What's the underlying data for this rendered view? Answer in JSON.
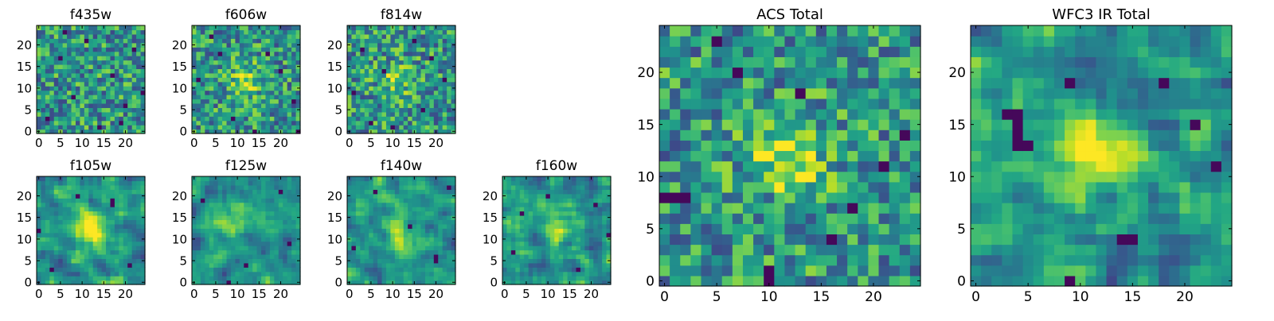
{
  "chart_data": [
    {
      "type": "heatmap",
      "title": "f435w",
      "size": 25,
      "xticks": [
        0,
        5,
        10,
        15,
        20
      ],
      "yticks": [
        0,
        5,
        10,
        15,
        20
      ],
      "colormap": "viridis",
      "gaussian_peak": {
        "x": 12,
        "y": 12,
        "amplitude": 0.0,
        "sigma": 4
      },
      "noise_seed": 435,
      "smoothing": 0,
      "dark_pixels": [
        [
          2,
          3
        ],
        [
          5,
          17
        ],
        [
          8,
          8
        ],
        [
          11,
          21
        ],
        [
          14,
          1
        ],
        [
          17,
          13
        ],
        [
          20,
          6
        ],
        [
          22,
          19
        ],
        [
          24,
          9
        ],
        [
          6,
          23
        ],
        [
          19,
          2
        ]
      ]
    },
    {
      "type": "heatmap",
      "title": "f606w",
      "size": 25,
      "xticks": [
        0,
        5,
        10,
        15,
        20
      ],
      "yticks": [
        0,
        5,
        10,
        15,
        20
      ],
      "colormap": "viridis",
      "gaussian_peak": {
        "x": 12,
        "y": 12,
        "amplitude": 0.35,
        "sigma": 2.5
      },
      "noise_seed": 606,
      "smoothing": 0,
      "dark_pixels": [
        [
          4,
          22
        ],
        [
          17,
          18
        ],
        [
          23,
          7
        ],
        [
          1,
          12
        ],
        [
          9,
          3
        ],
        [
          20,
          14
        ],
        [
          14,
          0
        ],
        [
          6,
          18
        ],
        [
          24,
          0
        ]
      ]
    },
    {
      "type": "heatmap",
      "title": "f814w",
      "size": 25,
      "xticks": [
        0,
        5,
        10,
        15,
        20
      ],
      "yticks": [
        0,
        5,
        10,
        15,
        20
      ],
      "colormap": "viridis",
      "gaussian_peak": {
        "x": 11,
        "y": 12,
        "amplitude": 0.3,
        "sigma": 2.5
      },
      "noise_seed": 814,
      "smoothing": 0,
      "dark_pixels": [
        [
          1,
          9
        ],
        [
          5,
          2
        ],
        [
          17,
          5
        ],
        [
          19,
          17
        ],
        [
          22,
          12
        ],
        [
          3,
          19
        ],
        [
          10,
          1
        ],
        [
          15,
          21
        ],
        [
          8,
          14
        ]
      ]
    },
    {
      "type": "heatmap",
      "title": "f105w",
      "size": 25,
      "xticks": [
        0,
        5,
        10,
        15,
        20
      ],
      "yticks": [
        0,
        5,
        10,
        15,
        20
      ],
      "colormap": "viridis",
      "gaussian_peak": {
        "x": 12,
        "y": 12,
        "amplitude": 0.45,
        "sigma": 3
      },
      "noise_seed": 105,
      "smoothing": 1,
      "dark_pixels": [
        [
          17,
          18
        ],
        [
          17,
          19
        ],
        [
          3,
          3
        ],
        [
          9,
          20
        ],
        [
          21,
          4
        ],
        [
          0,
          12
        ]
      ]
    },
    {
      "type": "heatmap",
      "title": "f125w",
      "size": 25,
      "xticks": [
        0,
        5,
        10,
        15,
        20
      ],
      "yticks": [
        0,
        5,
        10,
        15,
        20
      ],
      "colormap": "viridis",
      "gaussian_peak": {
        "x": 8,
        "y": 14,
        "amplitude": 0.35,
        "sigma": 3
      },
      "noise_seed": 125,
      "smoothing": 1,
      "dark_pixels": [
        [
          12,
          4
        ],
        [
          8,
          0
        ],
        [
          20,
          21
        ],
        [
          2,
          19
        ],
        [
          22,
          9
        ]
      ]
    },
    {
      "type": "heatmap",
      "title": "f140w",
      "size": 25,
      "xticks": [
        0,
        5,
        10,
        15,
        20
      ],
      "yticks": [
        0,
        5,
        10,
        15,
        20
      ],
      "colormap": "viridis",
      "gaussian_peak": {
        "x": 12,
        "y": 12,
        "amplitude": 0.35,
        "sigma": 3
      },
      "noise_seed": 140,
      "smoothing": 1,
      "dark_pixels": [
        [
          20,
          5
        ],
        [
          20,
          6
        ],
        [
          6,
          21
        ],
        [
          14,
          13
        ],
        [
          1,
          8
        ],
        [
          23,
          22
        ]
      ]
    },
    {
      "type": "heatmap",
      "title": "f160w",
      "size": 25,
      "xticks": [
        0,
        5,
        10,
        15,
        20
      ],
      "yticks": [
        0,
        5,
        10,
        15,
        20
      ],
      "colormap": "viridis",
      "gaussian_peak": {
        "x": 13,
        "y": 13,
        "amplitude": 0.35,
        "sigma": 3
      },
      "noise_seed": 160,
      "smoothing": 1,
      "dark_pixels": [
        [
          4,
          16
        ],
        [
          24,
          11
        ],
        [
          10,
          20
        ],
        [
          17,
          3
        ],
        [
          2,
          7
        ],
        [
          21,
          18
        ]
      ]
    },
    {
      "type": "heatmap",
      "title": "ACS Total",
      "size": 25,
      "xticks": [
        0,
        5,
        10,
        15,
        20
      ],
      "yticks": [
        0,
        5,
        10,
        15,
        20
      ],
      "colormap": "viridis",
      "gaussian_peak": {
        "x": 12,
        "y": 12,
        "amplitude": 0.4,
        "sigma": 2.5
      },
      "noise_seed": 7777,
      "smoothing": 0,
      "dark_pixels": [
        [
          0,
          8
        ],
        [
          1,
          8
        ],
        [
          2,
          8
        ],
        [
          10,
          0
        ],
        [
          10,
          1
        ],
        [
          21,
          11
        ],
        [
          23,
          14
        ],
        [
          18,
          7
        ],
        [
          13,
          18
        ],
        [
          5,
          23
        ],
        [
          16,
          4
        ],
        [
          7,
          20
        ]
      ]
    },
    {
      "type": "heatmap",
      "title": "WFC3 IR Total",
      "size": 25,
      "xticks": [
        0,
        5,
        10,
        15,
        20
      ],
      "yticks": [
        0,
        5,
        10,
        15,
        20
      ],
      "colormap": "viridis",
      "gaussian_peak": {
        "x": 12,
        "y": 12,
        "amplitude": 0.45,
        "sigma": 2.5
      },
      "noise_seed": 3141,
      "smoothing": 1,
      "dark_pixels": [
        [
          3,
          16
        ],
        [
          4,
          16
        ],
        [
          4,
          15
        ],
        [
          4,
          14
        ],
        [
          4,
          13
        ],
        [
          5,
          13
        ],
        [
          14,
          4
        ],
        [
          15,
          4
        ],
        [
          21,
          15
        ],
        [
          9,
          19
        ],
        [
          18,
          19
        ],
        [
          9,
          0
        ],
        [
          23,
          11
        ]
      ]
    }
  ]
}
